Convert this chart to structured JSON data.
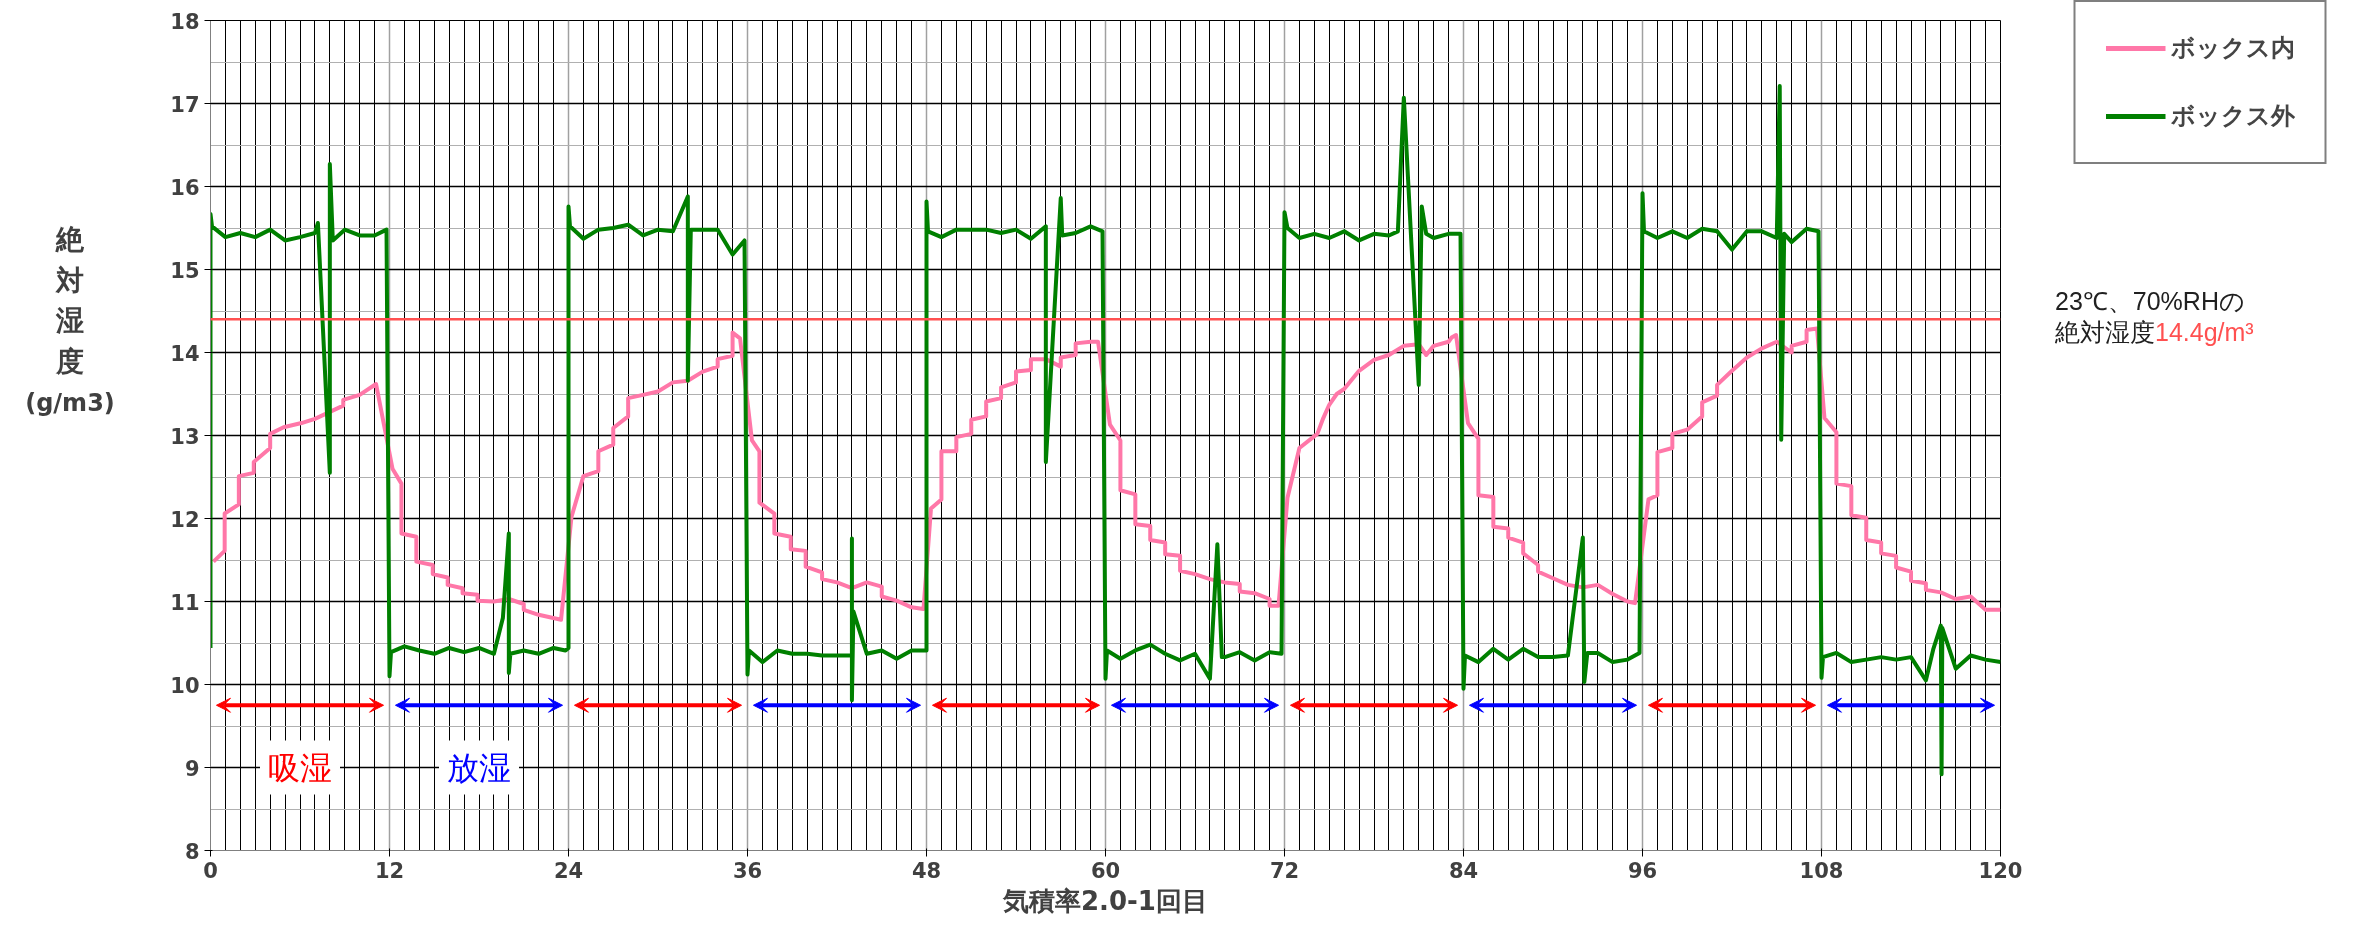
{
  "chart_data": {
    "type": "line",
    "xlabel": "気積率2.0-1回目",
    "ylabel": "絶対湿度 (g/m3)",
    "xlim": [
      0,
      120
    ],
    "xticks": [
      0,
      12,
      24,
      36,
      48,
      60,
      72,
      84,
      96,
      108,
      120
    ],
    "ylim": [
      8,
      18
    ],
    "yticks": [
      8,
      9,
      10,
      11,
      12,
      13,
      14,
      15,
      16,
      17,
      18
    ],
    "grid": true,
    "legend": "top right",
    "line_style": "solid",
    "marker": "none",
    "series": [
      {
        "name": "ボックス内",
        "color": "#ff77a8",
        "x": [
          0.2,
          0.95,
          0.95,
          1.9,
          1.9,
          2.9,
          2.9,
          4,
          4,
          4.9,
          6.1,
          7,
          8.9,
          8.9,
          10,
          11.1,
          12.2,
          12.8,
          12.8,
          13.8,
          13.8,
          14.9,
          14.9,
          15.9,
          15.9,
          16.9,
          16.9,
          17.9,
          17.9,
          19,
          20,
          21,
          21,
          22,
          23.5,
          24.2,
          25,
          26,
          26,
          27,
          27,
          28,
          28,
          29,
          30,
          31,
          32,
          33,
          34,
          34,
          35,
          35,
          35.5,
          36.3,
          36.8,
          36.8,
          37.8,
          37.8,
          38.9,
          38.9,
          39.9,
          39.9,
          41,
          41,
          42,
          43,
          44,
          45,
          45,
          46,
          47,
          47.8,
          48.3,
          49,
          49,
          50,
          50,
          51,
          51,
          52,
          52,
          53,
          53,
          54,
          54,
          55,
          55,
          56,
          57,
          57,
          58,
          58,
          59,
          59.5,
          60.3,
          61,
          61,
          62,
          62,
          63,
          63,
          64,
          64,
          65,
          65,
          66,
          67,
          68,
          69,
          69,
          70,
          71,
          71,
          71.6,
          72.2,
          73,
          74.2,
          74.6,
          75,
          75.5,
          76,
          77,
          78,
          79,
          80,
          81,
          81.5,
          82,
          83,
          83.2,
          83.5,
          84.3,
          85,
          85,
          86,
          86,
          87,
          87,
          88,
          88,
          89,
          89,
          90,
          91,
          92,
          93,
          94,
          95,
          95.5,
          96.4,
          97,
          97,
          98,
          98,
          99,
          100,
          100,
          101,
          101,
          102,
          103,
          104,
          105,
          106,
          106,
          107,
          107,
          107.7,
          108.2,
          109,
          109,
          110,
          110,
          111,
          111,
          112,
          112,
          113,
          113,
          114,
          114,
          115,
          115,
          116,
          117,
          118,
          119,
          120
        ],
        "values": [
          11.48,
          11.61,
          12.06,
          12.17,
          12.51,
          12.55,
          12.68,
          12.85,
          13.02,
          13.1,
          13.15,
          13.2,
          13.36,
          13.43,
          13.49,
          13.62,
          12.6,
          12.42,
          11.82,
          11.78,
          11.48,
          11.44,
          11.33,
          11.29,
          11.2,
          11.16,
          11.1,
          11.08,
          11.01,
          11.0,
          11.03,
          10.97,
          10.9,
          10.84,
          10.78,
          12.02,
          12.51,
          12.57,
          12.81,
          12.89,
          13.09,
          13.23,
          13.45,
          13.49,
          13.53,
          13.64,
          13.66,
          13.77,
          13.83,
          13.92,
          13.96,
          14.24,
          14.17,
          12.94,
          12.81,
          12.19,
          12.06,
          11.82,
          11.78,
          11.63,
          11.61,
          11.42,
          11.35,
          11.27,
          11.23,
          11.16,
          11.23,
          11.18,
          11.06,
          11.01,
          10.93,
          10.91,
          12.12,
          12.23,
          12.81,
          12.81,
          12.98,
          13.02,
          13.19,
          13.23,
          13.41,
          13.45,
          13.58,
          13.64,
          13.77,
          13.79,
          13.92,
          13.92,
          13.83,
          13.94,
          13.97,
          14.11,
          14.13,
          14.13,
          13.13,
          12.94,
          12.34,
          12.29,
          11.93,
          11.91,
          11.74,
          11.71,
          11.57,
          11.55,
          11.37,
          11.33,
          11.27,
          11.23,
          11.21,
          11.12,
          11.1,
          11.03,
          10.95,
          10.95,
          12.25,
          12.85,
          13.02,
          13.21,
          13.37,
          13.5,
          13.56,
          13.78,
          13.91,
          13.97,
          14.08,
          14.1,
          13.97,
          14.08,
          14.13,
          14.18,
          14.21,
          13.15,
          12.96,
          12.28,
          12.26,
          11.9,
          11.88,
          11.77,
          11.71,
          11.58,
          11.44,
          11.36,
          11.28,
          11.2,
          11.17,
          11.2,
          11.09,
          11.0,
          10.98,
          12.23,
          12.28,
          12.8,
          12.85,
          13.02,
          13.07,
          13.23,
          13.4,
          13.48,
          13.61,
          13.78,
          13.94,
          14.05,
          14.13,
          14.0,
          14.08,
          14.13,
          14.27,
          14.29,
          13.21,
          13.04,
          12.42,
          12.39,
          12.04,
          12.01,
          11.74,
          11.71,
          11.58,
          11.55,
          11.41,
          11.36,
          11.25,
          11.22,
          11.14,
          11.11,
          11.03,
          11.06,
          10.9,
          10.9
        ]
      },
      {
        "name": "ボックス外",
        "color": "#008000",
        "x": [
          0,
          0,
          0.1,
          1,
          2,
          3,
          4,
          5,
          6,
          7,
          7.2,
          8,
          8,
          8.2,
          9,
          10,
          11,
          11.8,
          12,
          12.1,
          13,
          14,
          15,
          16,
          17,
          18,
          19,
          19.6,
          20,
          20,
          20.1,
          21,
          22,
          23,
          23.8,
          24,
          24,
          24.1,
          25,
          26,
          27,
          28,
          29,
          30,
          31,
          32,
          32,
          32.2,
          33,
          34,
          35,
          35.8,
          36,
          36.1,
          37,
          38,
          39,
          40,
          41,
          42,
          43,
          43,
          43,
          43.1,
          44,
          45,
          46,
          47,
          48,
          48,
          48.1,
          49,
          50,
          51,
          52,
          53,
          54,
          55,
          56,
          56,
          57,
          57.1,
          58,
          59,
          59.8,
          60,
          60.1,
          61,
          62,
          63,
          64,
          65,
          66,
          67,
          67.5,
          67.8,
          68,
          69,
          70,
          71,
          71.8,
          72,
          72.2,
          73,
          74,
          75,
          76,
          77,
          78,
          79,
          79.6,
          80,
          81,
          81.2,
          81.5,
          82,
          83,
          83.8,
          84,
          84.1,
          85,
          86,
          87,
          88,
          89,
          90,
          91,
          92,
          92.1,
          92.3,
          93,
          94,
          95,
          95.8,
          96,
          96.1,
          97,
          98,
          99,
          100,
          101,
          102,
          103,
          104,
          105,
          105.2,
          105.3,
          105.5,
          106,
          107,
          107.8,
          108,
          108.1,
          109,
          110,
          111,
          112,
          113,
          114,
          115,
          115.5,
          116,
          116.05,
          116.1,
          117,
          118,
          119,
          120
        ],
        "values": [
          10.44,
          15.67,
          15.52,
          15.39,
          15.44,
          15.39,
          15.48,
          15.35,
          15.39,
          15.44,
          15.56,
          12.55,
          16.27,
          15.35,
          15.48,
          15.41,
          15.41,
          15.48,
          10.1,
          10.39,
          10.46,
          10.41,
          10.37,
          10.44,
          10.39,
          10.44,
          10.37,
          10.8,
          11.82,
          10.14,
          10.37,
          10.41,
          10.37,
          10.44,
          10.41,
          10.44,
          15.76,
          15.52,
          15.37,
          15.48,
          15.5,
          15.54,
          15.41,
          15.48,
          15.46,
          15.88,
          13.66,
          15.48,
          15.48,
          15.48,
          15.18,
          15.35,
          10.12,
          10.41,
          10.27,
          10.41,
          10.37,
          10.37,
          10.35,
          10.35,
          10.35,
          11.76,
          9.81,
          10.88,
          10.37,
          10.41,
          10.31,
          10.41,
          10.41,
          15.82,
          15.46,
          15.39,
          15.48,
          15.48,
          15.48,
          15.44,
          15.48,
          15.37,
          15.52,
          12.68,
          15.86,
          15.41,
          15.44,
          15.52,
          15.46,
          10.07,
          10.41,
          10.31,
          10.41,
          10.48,
          10.37,
          10.29,
          10.37,
          10.07,
          11.69,
          10.33,
          10.33,
          10.39,
          10.29,
          10.39,
          10.37,
          15.69,
          15.5,
          15.38,
          15.43,
          15.38,
          15.46,
          15.35,
          15.43,
          15.41,
          15.46,
          17.07,
          13.61,
          15.76,
          15.43,
          15.38,
          15.43,
          15.43,
          9.95,
          10.35,
          10.27,
          10.43,
          10.3,
          10.43,
          10.33,
          10.33,
          10.35,
          11.77,
          10.03,
          10.38,
          10.38,
          10.27,
          10.3,
          10.38,
          15.92,
          15.46,
          15.38,
          15.46,
          15.38,
          15.49,
          15.46,
          15.24,
          15.46,
          15.46,
          15.38,
          17.21,
          12.95,
          15.43,
          15.33,
          15.49,
          15.46,
          10.08,
          10.33,
          10.38,
          10.27,
          10.3,
          10.33,
          10.3,
          10.33,
          10.05,
          10.43,
          10.71,
          8.92,
          10.68,
          10.19,
          10.35,
          10.3,
          10.27
        ]
      }
    ],
    "ref_lines": [
      {
        "axis": "y",
        "value": 14.4,
        "color": "#ff5050",
        "label": "23℃、70%RHの絶対湿度14.4g/m³"
      }
    ],
    "annotations": [
      "吸湿",
      "放湿"
    ]
  }
}
